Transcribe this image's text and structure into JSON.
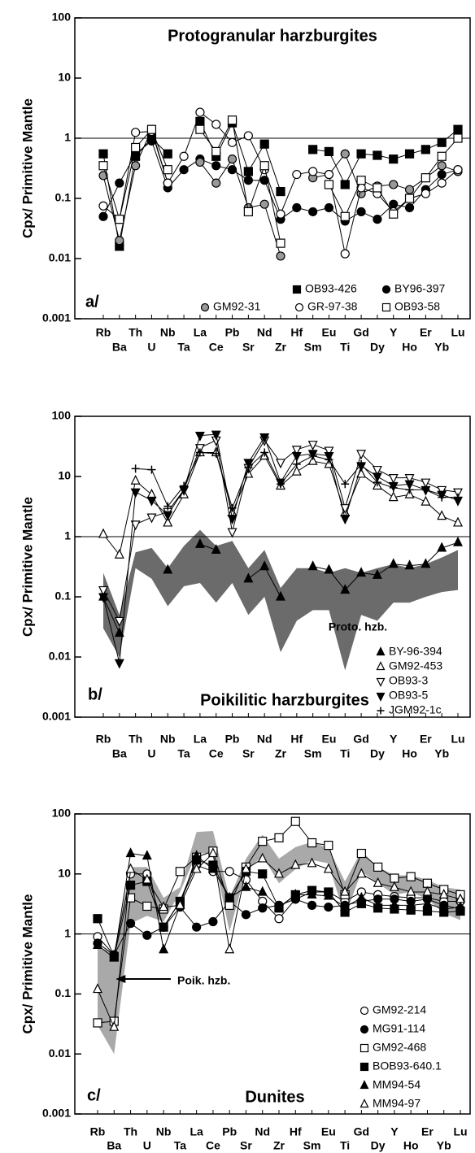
{
  "chart_data": [
    {
      "type": "line",
      "title": "Protogranular harzburgites",
      "panel_label": "a/",
      "ylabel": "Cpx/ Primitive Mantle",
      "categories": [
        "Rb",
        "Ba",
        "Th",
        "U",
        "Nb",
        "Ta",
        "La",
        "Ce",
        "Pb",
        "Sr",
        "Nd",
        "Zr",
        "Hf",
        "Sm",
        "Eu",
        "Ti",
        "Gd",
        "Dy",
        "Y",
        "Ho",
        "Er",
        "Yb",
        "Lu"
      ],
      "yscale": "log",
      "ylim": [
        0.001,
        100
      ],
      "yticks": [
        0.001,
        0.01,
        0.1,
        1,
        10,
        100
      ],
      "reference_line": 1,
      "legend": "lower right",
      "series": [
        {
          "name": "OB93-426",
          "marker": "square",
          "color": "#000",
          "values": [
            0.55,
            0.016,
            0.5,
            1.0,
            0.55,
            null,
            1.9,
            0.5,
            1.8,
            0.28,
            0.8,
            0.13,
            null,
            0.65,
            0.6,
            0.17,
            0.55,
            0.52,
            0.45,
            0.55,
            0.65,
            0.85,
            1.4
          ]
        },
        {
          "name": "BY96-397",
          "marker": "circle",
          "color": "#000",
          "values": [
            0.05,
            0.18,
            0.55,
            0.9,
            0.15,
            0.3,
            0.45,
            0.35,
            0.3,
            0.2,
            0.2,
            0.045,
            0.07,
            0.06,
            0.07,
            0.042,
            0.06,
            0.045,
            0.08,
            0.07,
            0.14,
            0.25,
            0.3
          ]
        },
        {
          "name": "GM92-31",
          "marker": "circle",
          "color": "#999",
          "values": [
            0.24,
            0.02,
            0.35,
            1.4,
            0.18,
            null,
            0.4,
            0.18,
            0.45,
            0.07,
            0.08,
            0.011,
            null,
            0.22,
            0.25,
            0.55,
            0.12,
            0.16,
            0.17,
            0.14,
            0.22,
            0.35,
            0.28
          ]
        },
        {
          "name": "GR-97-38",
          "marker": "circle",
          "color": "#fff",
          "values": [
            0.075,
            0.045,
            1.25,
            1.3,
            0.18,
            0.5,
            2.7,
            1.7,
            0.85,
            1.1,
            0.3,
            0.055,
            0.25,
            0.28,
            0.25,
            0.012,
            0.15,
            0.12,
            0.06,
            0.1,
            0.12,
            0.18,
            0.3
          ]
        },
        {
          "name": "OB93-58",
          "marker": "square",
          "color": "#fff",
          "values": [
            0.35,
            0.045,
            0.7,
            1.4,
            0.3,
            null,
            1.4,
            0.6,
            2.0,
            0.06,
            0.35,
            0.018,
            null,
            null,
            0.17,
            0.05,
            0.2,
            0.15,
            0.055,
            0.1,
            0.22,
            0.5,
            1.0
          ]
        }
      ]
    },
    {
      "type": "line",
      "title": "Poikilitic harzburgites",
      "panel_label": "b/",
      "ylabel": "Cpx/ Primitive Mantle",
      "categories": [
        "Rb",
        "Ba",
        "Th",
        "U",
        "Nb",
        "Ta",
        "La",
        "Ce",
        "Pb",
        "Sr",
        "Nd",
        "Zr",
        "Hf",
        "Sm",
        "Eu",
        "Ti",
        "Gd",
        "Dy",
        "Y",
        "Ho",
        "Er",
        "Yb",
        "Lu"
      ],
      "yscale": "log",
      "ylim": [
        0.001,
        100
      ],
      "yticks": [
        0.001,
        0.01,
        0.1,
        1,
        10,
        100
      ],
      "reference_line": 1,
      "legend": "lower right",
      "band": {
        "label": "Proto. hzb.",
        "color": "#6b6b6b",
        "upper": [
          0.25,
          0.05,
          0.55,
          0.65,
          0.3,
          0.7,
          1.3,
          0.7,
          0.85,
          0.3,
          0.6,
          0.14,
          0.3,
          0.3,
          0.25,
          0.3,
          0.25,
          0.3,
          0.35,
          0.3,
          0.35,
          0.45,
          0.6
        ],
        "lower": [
          0.03,
          0.01,
          0.3,
          0.2,
          0.07,
          0.15,
          0.17,
          0.08,
          0.17,
          0.05,
          0.1,
          0.012,
          0.04,
          0.06,
          0.06,
          0.006,
          0.05,
          0.04,
          0.08,
          0.08,
          0.1,
          0.12,
          0.13
        ]
      },
      "series": [
        {
          "name": "BY-96-394",
          "marker": "triangle",
          "color": "#000",
          "values": [
            0.1,
            0.025,
            null,
            null,
            0.28,
            null,
            0.75,
            0.6,
            null,
            0.2,
            0.32,
            0.1,
            null,
            0.32,
            0.28,
            0.13,
            0.25,
            0.23,
            0.35,
            0.33,
            0.35,
            0.65,
            0.8
          ]
        },
        {
          "name": "GM92-453",
          "marker": "triangle",
          "color": "#fff",
          "values": [
            1.1,
            0.5,
            8.5,
            5,
            1.7,
            5,
            25,
            25,
            2.5,
            11,
            22,
            7,
            12,
            18,
            16,
            2.5,
            11,
            7,
            4.5,
            5,
            3.8,
            2.2,
            1.7
          ]
        },
        {
          "name": "OB93-3",
          "marker": "triangle-down",
          "color": "#fff",
          "values": [
            0.13,
            0.04,
            1.6,
            2.1,
            2.6,
            6,
            30,
            40,
            1.2,
            14,
            40,
            17,
            28,
            34,
            27,
            3,
            24,
            13,
            9.5,
            9.5,
            8,
            6,
            5.5
          ]
        },
        {
          "name": "OB93-5",
          "marker": "triangle-down",
          "color": "#000",
          "values": [
            0.1,
            0.008,
            5.5,
            4,
            2.3,
            6,
            48,
            50,
            2,
            17,
            45,
            8,
            22,
            24,
            22,
            2,
            15,
            10,
            7,
            7.5,
            6,
            5,
            4
          ]
        },
        {
          "name": "JGM92-1c",
          "marker": "plus",
          "color": "#000",
          "values": [
            null,
            null,
            13.5,
            13,
            3.2,
            7,
            25,
            24,
            3,
            14,
            25,
            7.5,
            16,
            22,
            19,
            7.5,
            16,
            8,
            6.5,
            6,
            6,
            4.5,
            4.5
          ]
        }
      ]
    },
    {
      "type": "line",
      "title": "Dunites",
      "panel_label": "c/",
      "ylabel": "Cpx/ Primitive Mantle",
      "categories": [
        "Rb",
        "Ba",
        "Th",
        "U",
        "Nb",
        "Ta",
        "La",
        "Ce",
        "Pb",
        "Sr",
        "Nd",
        "Zr",
        "Hf",
        "Sm",
        "Eu",
        "Ti",
        "Gd",
        "Dy",
        "Y",
        "Ho",
        "Er",
        "Yb",
        "Lu"
      ],
      "yscale": "log",
      "ylim": [
        0.001,
        100
      ],
      "yticks": [
        0.001,
        0.01,
        0.1,
        1,
        10,
        100
      ],
      "reference_line": 1,
      "legend": "lower right",
      "band": {
        "label": "Poik. hzb.",
        "color": "#a9a9a9",
        "upper": [
          0.6,
          0.5,
          13,
          13,
          4,
          6,
          50,
          52,
          4,
          18,
          45,
          18,
          28,
          34,
          27,
          7.5,
          24,
          13,
          9.5,
          9.5,
          8,
          6,
          5.5
        ],
        "lower": [
          0.03,
          0.01,
          1.5,
          2,
          1.6,
          5,
          22,
          22,
          1.1,
          11,
          20,
          7,
          12,
          17,
          15,
          1.9,
          11,
          7,
          4.5,
          5,
          3.8,
          2.2,
          1.7
        ]
      },
      "series": [
        {
          "name": "GM92-214",
          "marker": "circle",
          "color": "#fff",
          "values": [
            0.9,
            0.45,
            10,
            10,
            1.3,
            3.5,
            14,
            11,
            11,
            8,
            3.5,
            1.8,
            3.8,
            5,
            5,
            3.5,
            5,
            4.5,
            4.2,
            4,
            4,
            3.5,
            3.5
          ]
        },
        {
          "name": "MG91-114",
          "marker": "circle",
          "color": "#000",
          "values": [
            0.7,
            0.45,
            1.5,
            0.95,
            1.3,
            2.8,
            1.3,
            1.6,
            3.5,
            2.1,
            2.7,
            3,
            3.8,
            3,
            2.8,
            3,
            3.5,
            3.8,
            3.8,
            3.5,
            3.8,
            3,
            2.6
          ]
        },
        {
          "name": "GM92-468",
          "marker": "square",
          "color": "#fff",
          "values": [
            0.033,
            0.035,
            4,
            2.9,
            2.6,
            11,
            19,
            24,
            3,
            13,
            35,
            40,
            75,
            33,
            30,
            4.5,
            22,
            13,
            8.5,
            9,
            7,
            5.5,
            4.5
          ]
        },
        {
          "name": "BOB93-640.1",
          "marker": "square",
          "color": "#000",
          "values": [
            1.8,
            0.42,
            6.5,
            7.5,
            1.3,
            3.5,
            17,
            14,
            4,
            11,
            10,
            2.7,
            4.5,
            5.3,
            5,
            2.3,
            3.2,
            2.7,
            2.6,
            2.5,
            2.4,
            2.3,
            2.4
          ]
        },
        {
          "name": "MM94-54",
          "marker": "triangle",
          "color": "#000",
          "values": [
            0.65,
            0.4,
            22,
            20,
            0.55,
            3,
            20,
            12,
            4,
            6,
            5,
            2.8,
            4.5,
            4.5,
            4.3,
            2.8,
            4,
            3,
            3,
            3,
            3.2,
            2.6,
            2.8
          ]
        },
        {
          "name": "MM94-97",
          "marker": "triangle",
          "color": "#fff",
          "values": [
            0.12,
            0.028,
            12,
            8,
            2.8,
            3,
            12,
            22,
            0.55,
            12,
            18,
            10,
            14,
            15,
            12,
            5,
            10,
            7,
            6,
            5,
            5,
            4.5,
            3.8
          ]
        }
      ]
    }
  ]
}
